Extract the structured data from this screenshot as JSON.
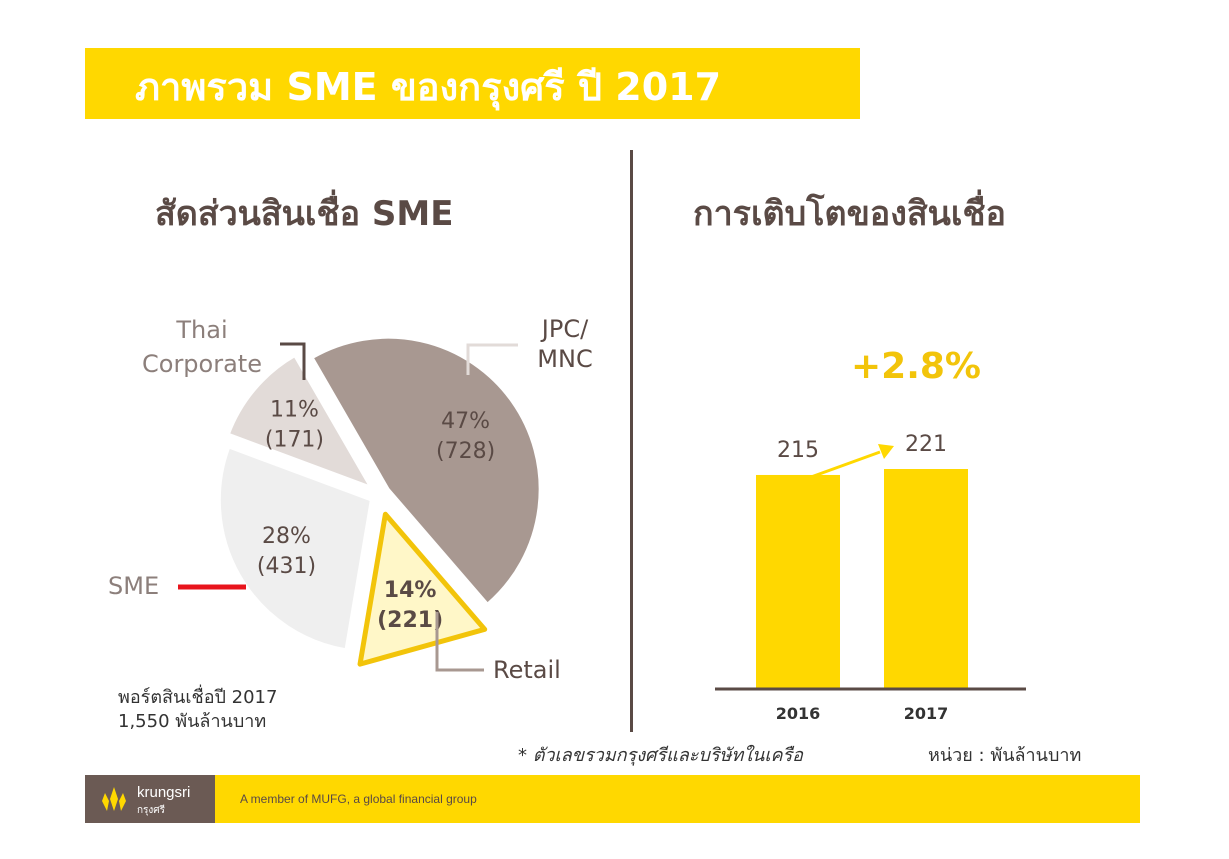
{
  "header": {
    "title": "ภาพรวม SME ของกรุงศรี ปี 2017"
  },
  "left": {
    "title": "สัดส่วนสินเชื่อ SME"
  },
  "right": {
    "title": "การเติบโตของสินเชื่อ",
    "growth_label": "+2.8%"
  },
  "portfolio": {
    "line1": "พอร์ตสินเชื่อปี 2017",
    "line2": "1,550 พันล้านบาท"
  },
  "footnote": "* ตัวเลขรวมกรุงศรีและบริษัทในเครือ",
  "unit": "หน่วย : พันล้านบาท",
  "footer": {
    "brand": "krungsri",
    "brand_sub": "กรุงศรี",
    "member": "A member of MUFG, a global financial group"
  },
  "colors": {
    "accent": "#ffd800",
    "text": "#5a4a45",
    "sme_line": "#e8141c"
  },
  "chart_data": [
    {
      "type": "pie",
      "title": "สัดส่วนสินเชื่อ SME",
      "slices": [
        {
          "name": "Retail",
          "percent": "47%",
          "value_label": "(728)",
          "percent_value": 47,
          "value": 728,
          "color": "#a89891"
        },
        {
          "name": "SME",
          "percent": "14%",
          "value_label": "(221)",
          "percent_value": 14,
          "value": 221,
          "color": "#fff7c8"
        },
        {
          "name": "Thai Corporate",
          "percent": "28%",
          "value_label": "(431)",
          "percent_value": 28,
          "value": 431,
          "color": "#efefef"
        },
        {
          "name": "JPC/ MNC",
          "percent": "11%",
          "value_label": "(171)",
          "percent_value": 11,
          "value": 171,
          "color": "#e2dbd8"
        }
      ],
      "callouts": {
        "thai_corporate": [
          "Thai",
          "Corporate"
        ],
        "jpc_mnc": [
          "JPC/",
          "MNC"
        ],
        "retail": "Retail",
        "sme": "SME"
      }
    },
    {
      "type": "bar",
      "title": "การเติบโตของสินเชื่อ",
      "categories": [
        "2016",
        "2017"
      ],
      "values": [
        215,
        221
      ],
      "annotation": "+2.8%",
      "bar_color": "#ffd800"
    }
  ]
}
